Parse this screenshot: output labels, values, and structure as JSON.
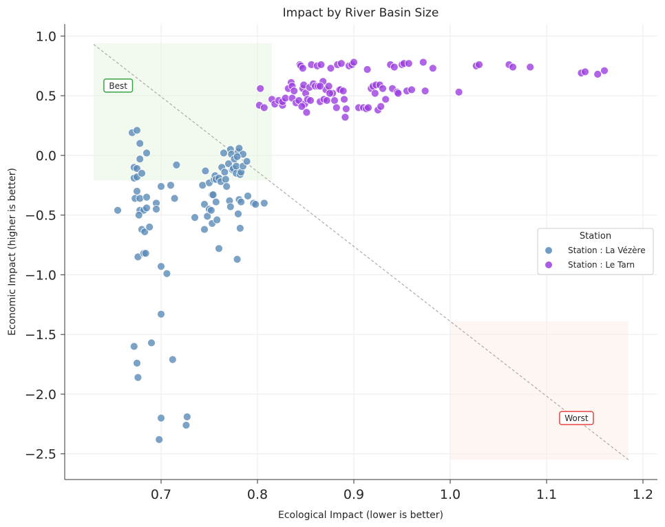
{
  "chart_data": {
    "type": "scatter",
    "title": "Impact by River Basin Size",
    "xlabel": "Ecological Impact (lower is better)",
    "ylabel": "Economic Impact (higher is better)",
    "xlim": [
      0.6,
      1.215
    ],
    "ylim": [
      -2.715,
      1.1
    ],
    "xticks": [
      0.7,
      0.8,
      0.9,
      1.0,
      1.1,
      1.2
    ],
    "xtick_labels": [
      "0.7",
      "0.8",
      "0.9",
      "1.0",
      "1.1",
      "1.2"
    ],
    "yticks": [
      1.0,
      0.5,
      0.0,
      -0.5,
      -1.0,
      -1.5,
      -2.0,
      -2.5
    ],
    "ytick_labels": [
      "1.0",
      "0.5",
      "0.0",
      "−0.5",
      "−1.0",
      "−1.5",
      "−2.0",
      "−2.5"
    ],
    "grid": true,
    "legend": {
      "title": "Station",
      "placement": "center-right"
    },
    "diagonal": {
      "x": [
        0.63,
        1.185
      ],
      "y": [
        0.93,
        -2.55
      ],
      "style": "dashed",
      "color": "#aaaaaa"
    },
    "regions": [
      {
        "name": "best-region",
        "x": [
          0.63,
          0.815
        ],
        "y": [
          -0.21,
          0.94
        ],
        "color": "#e7f6e4"
      },
      {
        "name": "worst-region",
        "x": [
          1.0,
          1.185
        ],
        "y": [
          -2.55,
          -1.39
        ],
        "color": "#fbefe8"
      }
    ],
    "annotations": [
      {
        "text": "Best",
        "x": 0.6555,
        "y": 0.585,
        "color": "#3aa346"
      },
      {
        "text": "Worst",
        "x": 1.131,
        "y": -2.2,
        "color": "#e84141"
      }
    ],
    "series": [
      {
        "name": "Station : La Vézère",
        "color": "#5b8bb8",
        "points": [
          [
            0.67,
            0.19
          ],
          [
            0.675,
            0.21
          ],
          [
            0.678,
            0.1
          ],
          [
            0.678,
            -0.03
          ],
          [
            0.685,
            0.02
          ],
          [
            0.672,
            -0.1
          ],
          [
            0.675,
            -0.11
          ],
          [
            0.672,
            -0.19
          ],
          [
            0.675,
            -0.18
          ],
          [
            0.68,
            -0.15
          ],
          [
            0.675,
            -0.3
          ],
          [
            0.673,
            -0.36
          ],
          [
            0.678,
            -0.36
          ],
          [
            0.685,
            -0.35
          ],
          [
            0.655,
            -0.46
          ],
          [
            0.678,
            -0.46
          ],
          [
            0.682,
            -0.46
          ],
          [
            0.685,
            -0.44
          ],
          [
            0.695,
            -0.4
          ],
          [
            0.695,
            -0.45
          ],
          [
            0.677,
            -0.5
          ],
          [
            0.68,
            -0.62
          ],
          [
            0.683,
            -0.64
          ],
          [
            0.688,
            -0.6
          ],
          [
            0.7,
            -0.26
          ],
          [
            0.71,
            -0.25
          ],
          [
            0.714,
            -0.36
          ],
          [
            0.716,
            -0.08
          ],
          [
            0.676,
            -0.85
          ],
          [
            0.682,
            -0.82
          ],
          [
            0.684,
            -0.82
          ],
          [
            0.7,
            -0.93
          ],
          [
            0.706,
            -0.99
          ],
          [
            0.7,
            -1.33
          ],
          [
            0.672,
            -1.6
          ],
          [
            0.69,
            -1.57
          ],
          [
            0.675,
            -1.74
          ],
          [
            0.676,
            -1.86
          ],
          [
            0.712,
            -1.71
          ],
          [
            0.7,
            -2.2
          ],
          [
            0.698,
            -2.38
          ],
          [
            0.727,
            -2.19
          ],
          [
            0.726,
            -2.26
          ],
          [
            0.735,
            -0.52
          ],
          [
            0.743,
            -0.25
          ],
          [
            0.745,
            -0.41
          ],
          [
            0.746,
            -0.13
          ],
          [
            0.745,
            -0.62
          ],
          [
            0.748,
            -0.51
          ],
          [
            0.75,
            -0.23
          ],
          [
            0.75,
            -0.45
          ],
          [
            0.752,
            -0.46
          ],
          [
            0.753,
            -0.33
          ],
          [
            0.754,
            -0.33
          ],
          [
            0.755,
            -0.2
          ],
          [
            0.756,
            -0.17
          ],
          [
            0.757,
            -0.2
          ],
          [
            0.757,
            -0.39
          ],
          [
            0.753,
            -0.57
          ],
          [
            0.758,
            -0.54
          ],
          [
            0.76,
            -0.19
          ],
          [
            0.762,
            -0.22
          ],
          [
            0.763,
            -0.1
          ],
          [
            0.765,
            0.02
          ],
          [
            0.766,
            -0.14
          ],
          [
            0.767,
            -0.2
          ],
          [
            0.768,
            -0.26
          ],
          [
            0.77,
            -0.07
          ],
          [
            0.771,
            -0.38
          ],
          [
            0.772,
            0.05
          ],
          [
            0.772,
            -0.43
          ],
          [
            0.773,
            0.01
          ],
          [
            0.774,
            -0.12
          ],
          [
            0.775,
            -0.11
          ],
          [
            0.776,
            -0.03
          ],
          [
            0.778,
            -0.15
          ],
          [
            0.778,
            -0.09
          ],
          [
            0.779,
            -0.87
          ],
          [
            0.78,
            -0.49
          ],
          [
            0.78,
            0.03
          ],
          [
            0.781,
            0.06
          ],
          [
            0.781,
            -0.37
          ],
          [
            0.782,
            -0.16
          ],
          [
            0.783,
            -0.39
          ],
          [
            0.783,
            -0.14
          ],
          [
            0.782,
            -0.61
          ],
          [
            0.785,
            -0.09
          ],
          [
            0.789,
            -0.05
          ],
          [
            0.79,
            -0.34
          ],
          [
            0.796,
            -0.4
          ],
          [
            0.798,
            -0.41
          ],
          [
            0.807,
            -0.4
          ],
          [
            0.76,
            -0.78
          ],
          [
            0.785,
            0.01
          ],
          [
            0.779,
            -0.01
          ]
        ]
      },
      {
        "name": "Station : Le Tarn",
        "color": "#9b3fe0",
        "points": [
          [
            0.803,
            0.56
          ],
          [
            0.802,
            0.42
          ],
          [
            0.807,
            0.4
          ],
          [
            0.815,
            0.47
          ],
          [
            0.818,
            0.43
          ],
          [
            0.822,
            0.46
          ],
          [
            0.826,
            0.42
          ],
          [
            0.826,
            0.45
          ],
          [
            0.829,
            0.48
          ],
          [
            0.832,
            0.56
          ],
          [
            0.835,
            0.61
          ],
          [
            0.836,
            0.58
          ],
          [
            0.836,
            0.48
          ],
          [
            0.838,
            0.54
          ],
          [
            0.84,
            0.44
          ],
          [
            0.843,
            0.46
          ],
          [
            0.844,
            0.76
          ],
          [
            0.845,
            0.75
          ],
          [
            0.847,
            0.73
          ],
          [
            0.847,
            0.56
          ],
          [
            0.848,
            0.59
          ],
          [
            0.849,
            0.43
          ],
          [
            0.85,
            0.52
          ],
          [
            0.851,
            0.36
          ],
          [
            0.852,
            0.47
          ],
          [
            0.854,
            0.57
          ],
          [
            0.855,
            0.46
          ],
          [
            0.856,
            0.76
          ],
          [
            0.858,
            0.6
          ],
          [
            0.86,
            0.58
          ],
          [
            0.862,
            0.75
          ],
          [
            0.863,
            0.58
          ],
          [
            0.865,
            0.45
          ],
          [
            0.866,
            0.76
          ],
          [
            0.868,
            0.62
          ],
          [
            0.869,
            0.47
          ],
          [
            0.871,
            0.55
          ],
          [
            0.872,
            0.46
          ],
          [
            0.874,
            0.58
          ],
          [
            0.876,
            0.73
          ],
          [
            0.878,
            0.52
          ],
          [
            0.88,
            0.46
          ],
          [
            0.882,
            0.4
          ],
          [
            0.883,
            0.76
          ],
          [
            0.885,
            0.55
          ],
          [
            0.886,
            0.55
          ],
          [
            0.887,
            0.77
          ],
          [
            0.889,
            0.54
          ],
          [
            0.89,
            0.47
          ],
          [
            0.891,
            0.32
          ],
          [
            0.892,
            0.39
          ],
          [
            0.895,
            0.75
          ],
          [
            0.898,
            0.76
          ],
          [
            0.9,
            0.78
          ],
          [
            0.905,
            0.4
          ],
          [
            0.91,
            0.4
          ],
          [
            0.913,
            0.39
          ],
          [
            0.914,
            0.72
          ],
          [
            0.915,
            0.4
          ],
          [
            0.918,
            0.56
          ],
          [
            0.92,
            0.58
          ],
          [
            0.922,
            0.52
          ],
          [
            0.923,
            0.59
          ],
          [
            0.925,
            0.38
          ],
          [
            0.927,
            0.59
          ],
          [
            0.928,
            0.41
          ],
          [
            0.93,
            0.56
          ],
          [
            0.933,
            0.47
          ],
          [
            0.938,
            0.76
          ],
          [
            0.94,
            0.56
          ],
          [
            0.942,
            0.74
          ],
          [
            0.945,
            0.53
          ],
          [
            0.946,
            0.52
          ],
          [
            0.95,
            0.76
          ],
          [
            0.952,
            0.77
          ],
          [
            0.955,
            0.54
          ],
          [
            0.957,
            0.77
          ],
          [
            0.96,
            0.55
          ],
          [
            0.972,
            0.78
          ],
          [
            0.974,
            0.54
          ],
          [
            0.982,
            0.73
          ],
          [
            1.009,
            0.53
          ],
          [
            1.027,
            0.75
          ],
          [
            1.03,
            0.76
          ],
          [
            1.061,
            0.76
          ],
          [
            1.065,
            0.74
          ],
          [
            1.083,
            0.74
          ],
          [
            1.136,
            0.69
          ],
          [
            1.14,
            0.7
          ],
          [
            1.153,
            0.68
          ],
          [
            1.16,
            0.71
          ],
          [
            0.846,
            0.41
          ],
          [
            0.875,
            0.52
          ],
          [
            0.865,
            0.58
          ]
        ]
      }
    ]
  }
}
